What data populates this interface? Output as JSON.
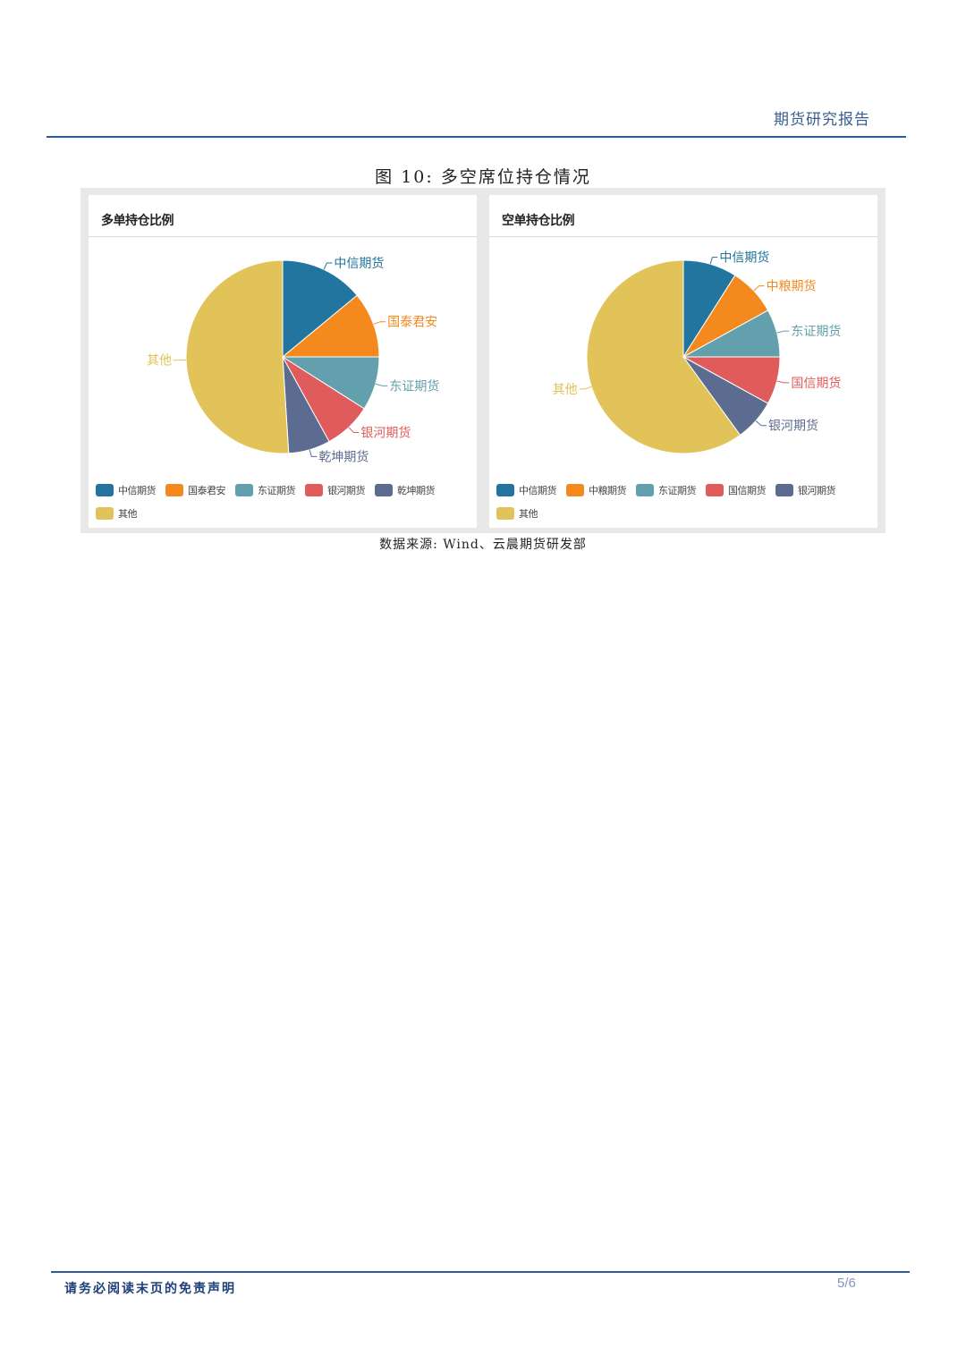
{
  "header": {
    "title": "期货研究报告"
  },
  "figure": {
    "caption": "图 10:  多空席位持仓情况",
    "source": "数据来源: Wind、云晨期货研发部"
  },
  "chart_data": [
    {
      "type": "pie",
      "title": "多单持仓比例",
      "categories": [
        "中信期货",
        "国泰君安",
        "东证期货",
        "银河期货",
        "乾坤期货",
        "其他"
      ],
      "values": [
        14,
        11,
        9,
        8,
        7,
        51
      ],
      "colors": [
        "#21759f",
        "#f4891d",
        "#62a0ad",
        "#e05c5c",
        "#5c6b90",
        "#e2c35a"
      ],
      "legend": "bottom"
    },
    {
      "type": "pie",
      "title": "空单持仓比例",
      "categories": [
        "中信期货",
        "中粮期货",
        "东证期货",
        "国信期货",
        "银河期货",
        "其他"
      ],
      "values": [
        9,
        8,
        8,
        8,
        7,
        60
      ],
      "colors": [
        "#21759f",
        "#f4891d",
        "#62a0ad",
        "#e05c5c",
        "#5c6b90",
        "#e2c35a"
      ],
      "legend": "bottom"
    }
  ],
  "footer": {
    "disclaimer": "请务必阅读末页的免责声明",
    "page": "5/6"
  }
}
